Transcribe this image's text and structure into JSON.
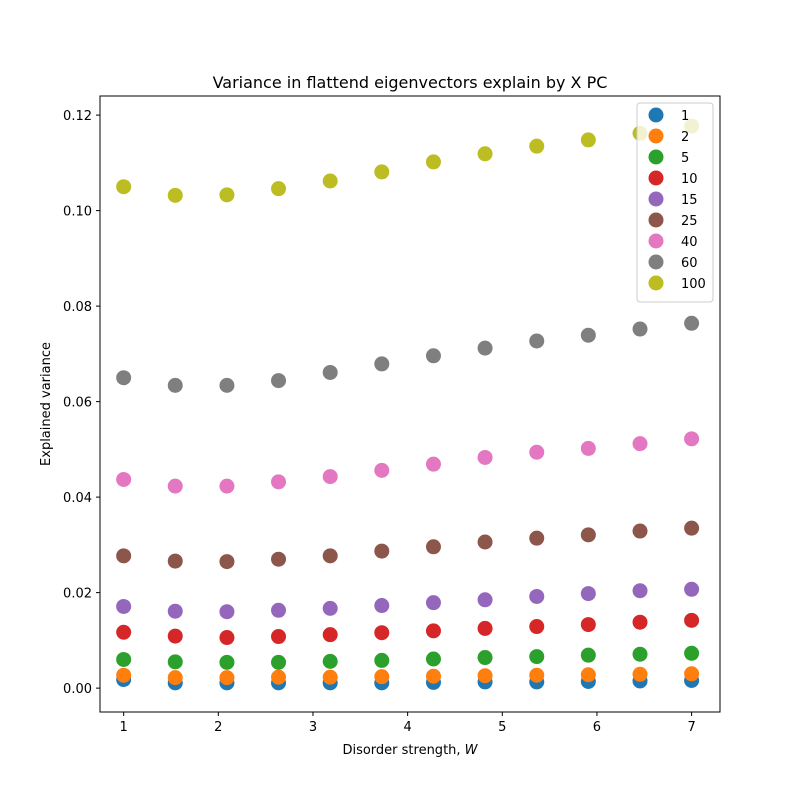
{
  "chart_data": {
    "type": "scatter",
    "title": "Variance in flattend eigenvectors explain by X PC",
    "xlabel": "Disorder strength, ",
    "xlabel_var": "W",
    "ylabel": "Explained variance",
    "xlim": [
      0.75,
      7.3
    ],
    "ylim": [
      -0.005,
      0.124
    ],
    "xticks": [
      1,
      2,
      3,
      4,
      5,
      6,
      7
    ],
    "xtick_labels": [
      "1",
      "2",
      "3",
      "4",
      "5",
      "6",
      "7"
    ],
    "yticks": [
      0.0,
      0.02,
      0.04,
      0.06,
      0.08,
      0.1,
      0.12
    ],
    "ytick_labels": [
      "0.00",
      "0.02",
      "0.04",
      "0.06",
      "0.08",
      "0.10",
      "0.12"
    ],
    "grid": false,
    "legend_position": "top-right",
    "x": [
      1.0,
      1.545,
      2.091,
      2.636,
      3.182,
      3.727,
      4.273,
      4.818,
      5.364,
      5.909,
      6.455,
      7.0
    ],
    "series": [
      {
        "name": "1",
        "color": "#1f77b4",
        "values": [
          0.0018,
          0.0011,
          0.0011,
          0.0011,
          0.0011,
          0.0011,
          0.0012,
          0.0013,
          0.0013,
          0.0014,
          0.0015,
          0.0016
        ]
      },
      {
        "name": "2",
        "color": "#ff7f0e",
        "values": [
          0.0027,
          0.0022,
          0.0022,
          0.0023,
          0.0023,
          0.0024,
          0.0025,
          0.0026,
          0.0027,
          0.0028,
          0.0029,
          0.003
        ]
      },
      {
        "name": "5",
        "color": "#2ca02c",
        "values": [
          0.006,
          0.0055,
          0.0054,
          0.0054,
          0.0056,
          0.0058,
          0.0061,
          0.0064,
          0.0066,
          0.0069,
          0.0071,
          0.0073
        ]
      },
      {
        "name": "10",
        "color": "#d62728",
        "values": [
          0.0117,
          0.0109,
          0.0106,
          0.0108,
          0.0112,
          0.0116,
          0.012,
          0.0125,
          0.0129,
          0.0133,
          0.0138,
          0.0142
        ]
      },
      {
        "name": "15",
        "color": "#9467bd",
        "values": [
          0.0171,
          0.0161,
          0.016,
          0.0163,
          0.0167,
          0.0173,
          0.0179,
          0.0185,
          0.0192,
          0.0198,
          0.0204,
          0.0207
        ]
      },
      {
        "name": "25",
        "color": "#8c564b",
        "values": [
          0.0277,
          0.0266,
          0.0265,
          0.027,
          0.0277,
          0.0287,
          0.0296,
          0.0306,
          0.0314,
          0.0321,
          0.0329,
          0.0335
        ]
      },
      {
        "name": "40",
        "color": "#e377c2",
        "values": [
          0.0437,
          0.0423,
          0.0423,
          0.0432,
          0.0443,
          0.0456,
          0.0469,
          0.0483,
          0.0494,
          0.0502,
          0.0512,
          0.0522
        ]
      },
      {
        "name": "60",
        "color": "#7f7f7f",
        "values": [
          0.065,
          0.0634,
          0.0634,
          0.0644,
          0.0661,
          0.0679,
          0.0696,
          0.0712,
          0.0727,
          0.0739,
          0.0752,
          0.0764
        ]
      },
      {
        "name": "100",
        "color": "#bcbd22",
        "values": [
          0.105,
          0.1032,
          0.1033,
          0.1046,
          0.1062,
          0.1081,
          0.1102,
          0.1119,
          0.1135,
          0.1148,
          0.1162,
          0.1177
        ]
      }
    ]
  }
}
